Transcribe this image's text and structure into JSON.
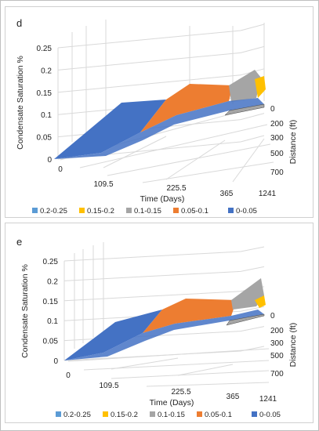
{
  "chart_data": [
    {
      "type": "surface",
      "title": "d",
      "xlabel": "Time (Days)",
      "ylabel": "Distance (ft)",
      "zlabel": "Condensate Saturation %",
      "x_ticks": [
        "0",
        "109.5",
        "225.5",
        "365",
        "1241"
      ],
      "y_ticks": [
        "0",
        "200",
        "300",
        "500",
        "700"
      ],
      "z_ticks": [
        "0",
        "0.05",
        "0.1",
        "0.15",
        "0.2",
        "0.25"
      ],
      "zlim": [
        0,
        0.25
      ],
      "legend": [
        {
          "label": "0.2-0.25",
          "color": "#5b9bd5"
        },
        {
          "label": "0.15-0.2",
          "color": "#ffc000"
        },
        {
          "label": "0.1-0.15",
          "color": "#a5a5a5"
        },
        {
          "label": "0.05-0.1",
          "color": "#ed7d31"
        },
        {
          "label": "0-0.05",
          "color": "#4472c4"
        }
      ],
      "legend_position": "bottom"
    },
    {
      "type": "surface",
      "title": "e",
      "xlabel": "Time (Days)",
      "ylabel": "Distance (ft)",
      "zlabel": "Condensate Saturation %",
      "x_ticks": [
        "0",
        "109.5",
        "225.5",
        "365",
        "1241"
      ],
      "y_ticks": [
        "0",
        "200",
        "300",
        "500",
        "700"
      ],
      "z_ticks": [
        "0",
        "0.05",
        "0.1",
        "0.15",
        "0.2",
        "0.25"
      ],
      "zlim": [
        0,
        0.25
      ],
      "legend": [
        {
          "label": "0.2-0.25",
          "color": "#5b9bd5"
        },
        {
          "label": "0.15-0.2",
          "color": "#ffc000"
        },
        {
          "label": "0.1-0.15",
          "color": "#a5a5a5"
        },
        {
          "label": "0.05-0.1",
          "color": "#ed7d31"
        },
        {
          "label": "0-0.05",
          "color": "#4472c4"
        }
      ],
      "legend_position": "bottom"
    }
  ]
}
